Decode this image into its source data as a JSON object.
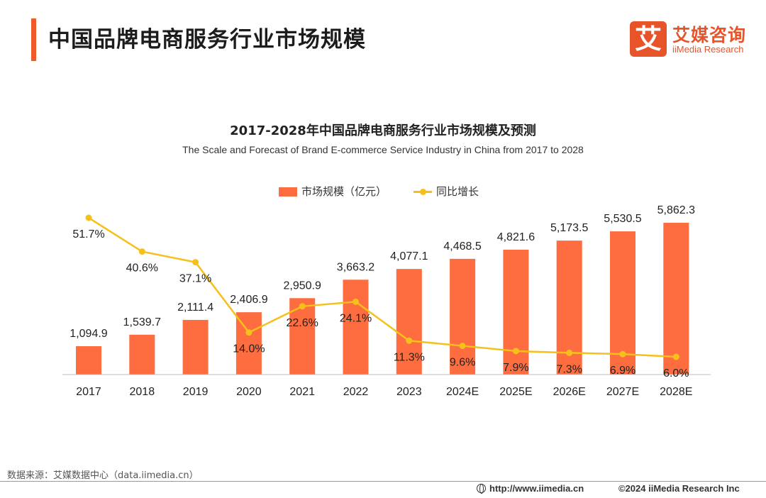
{
  "header": {
    "title": "中国品牌电商服务行业市场规模",
    "logo_mark": "艾",
    "logo_cn": "艾媒咨询",
    "logo_en": "iiMedia Research",
    "accent_color": "#ef5b2a"
  },
  "chart_data": {
    "type": "bar",
    "title": "2017-2028年中国品牌电商服务行业市场规模及预测",
    "subtitle": "The Scale and Forecast of Brand E-commerce Service Industry in China from 2017 to 2028",
    "categories": [
      "2017",
      "2018",
      "2019",
      "2020",
      "2021",
      "2022",
      "2023",
      "2024E",
      "2025E",
      "2026E",
      "2027E",
      "2028E"
    ],
    "series": [
      {
        "name": "市场规模（亿元）",
        "type": "bar",
        "color": "#fd6d3f",
        "values": [
          1094.9,
          1539.7,
          2111.4,
          2406.9,
          2950.9,
          3663.2,
          4077.1,
          4468.5,
          4821.6,
          5173.5,
          5530.5,
          5862.3
        ],
        "labels": [
          "1,094.9",
          "1,539.7",
          "2,111.4",
          "2,406.9",
          "2,950.9",
          "3,663.2",
          "4,077.1",
          "4,468.5",
          "4,821.6",
          "5,173.5",
          "5,530.5",
          "5,862.3"
        ]
      },
      {
        "name": "同比增长",
        "type": "line",
        "color": "#f6c01b",
        "values": [
          51.7,
          40.6,
          37.1,
          14.0,
          22.6,
          24.1,
          11.3,
          9.6,
          7.9,
          7.3,
          6.9,
          6.0
        ],
        "labels": [
          "51.7%",
          "40.6%",
          "37.1%",
          "14.0%",
          "22.6%",
          "24.1%",
          "11.3%",
          "9.6%",
          "7.9%",
          "7.3%",
          "6.9%",
          "6.0%"
        ]
      }
    ],
    "legend": "top-center",
    "grid": false
  },
  "footer": {
    "source": "数据来源：艾媒数据中心（data.iimedia.cn）",
    "url": "http://www.iimedia.cn",
    "copyright": "©2024  iiMedia Research  Inc"
  }
}
